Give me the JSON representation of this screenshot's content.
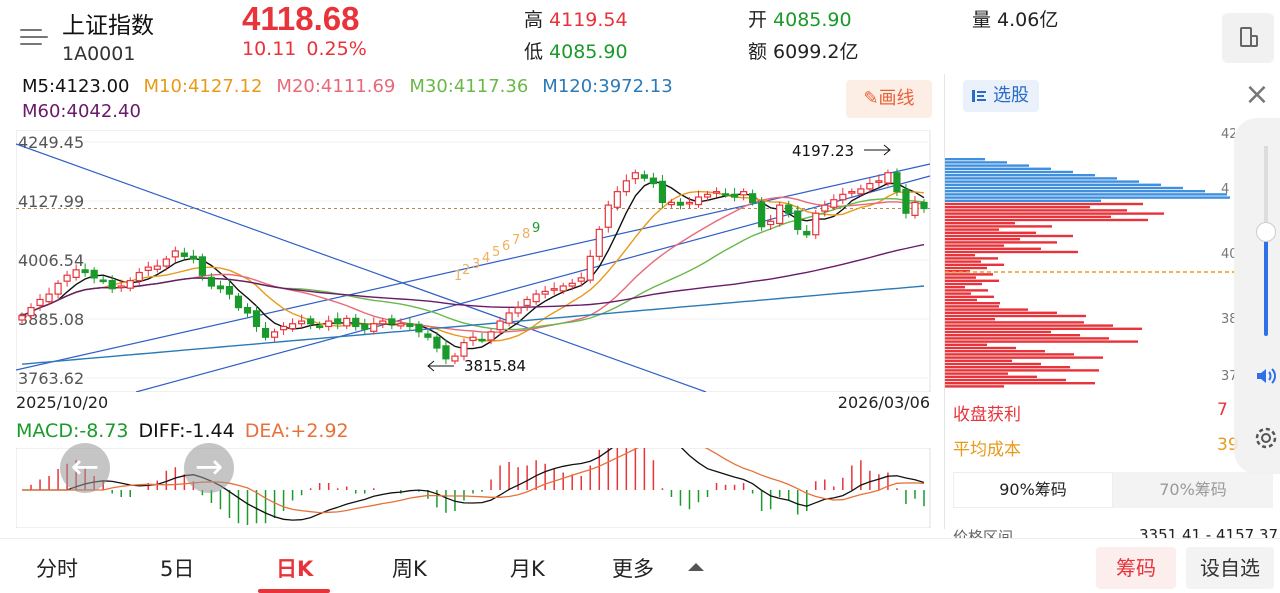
{
  "header": {
    "index_name": "上证指数",
    "index_code": "1A0001",
    "price": "4118.68",
    "change": "10.11",
    "change_pct": "0.25%",
    "high_label": "高",
    "high_value": "4119.54",
    "low_label": "低",
    "low_value": "4085.90",
    "open_label": "开",
    "open_value": "4085.90",
    "amount_label": "额",
    "amount_value": "6099.2亿",
    "volume_label": "量",
    "volume_value": "4.06亿"
  },
  "ma": {
    "m5": "M5:4123.00",
    "m10": "M10:4127.12",
    "m20": "M20:4111.69",
    "m30": "M30:4117.36",
    "m120": "M120:3972.13",
    "m60": "M60:4042.40"
  },
  "draw_button": "画线",
  "price_axis": [
    "4249.45",
    "4127.99",
    "4006.54",
    "3885.08",
    "3763.62"
  ],
  "annotations": {
    "high": "4197.23",
    "low": "3815.84"
  },
  "dates": {
    "start": "2025/10/20",
    "end": "2026/03/06"
  },
  "macd": {
    "macd": "MACD:-8.73",
    "diff": "DIFF:-1.44",
    "dea": "DEA:+2.92"
  },
  "td_sequence_labels": [
    "1",
    "2",
    "3",
    "4",
    "5",
    "6",
    "7",
    "8",
    "9"
  ],
  "colors": {
    "up": "#e8333a",
    "down": "#1a9a2a",
    "accent": "#e8333a",
    "chip_blue": "#3f8fe0"
  },
  "side": {
    "pick_label": "选股",
    "profit_label": "收盘获利",
    "profit_value": "7",
    "cost_label": "平均成本",
    "cost_value": "39",
    "tab_90": "90%筹码",
    "tab_70": "70%筹码",
    "range_label": "价格区间",
    "range_value": "3351.41 - 4157.37",
    "axis_partial": [
      "42",
      "4",
      "40",
      "38",
      "37"
    ]
  },
  "tabs": [
    "分时",
    "5日",
    "日K",
    "周K",
    "月K",
    "更多"
  ],
  "active_tab": "日K",
  "chip_button": "筹码",
  "fav_button": "设自选",
  "chart_data": {
    "type": "candlestick",
    "title": "上证指数",
    "ylim": [
      3763.62,
      4249.45
    ],
    "x_start": "2025/10/20",
    "x_end": "2026/03/06",
    "last_close": 4118.68,
    "high_marked": 4197.23,
    "low_marked": 3815.84,
    "closes": [
      3920,
      3935,
      3950,
      3960,
      3980,
      3995,
      4005,
      4000,
      3990,
      3985,
      3970,
      3975,
      3985,
      4000,
      4010,
      4012,
      4025,
      4040,
      4030,
      4025,
      3995,
      3975,
      3970,
      3960,
      3935,
      3925,
      3900,
      3880,
      3890,
      3900,
      3905,
      3910,
      3905,
      3900,
      3910,
      3905,
      3915,
      3900,
      3895,
      3905,
      3910,
      3905,
      3905,
      3900,
      3890,
      3880,
      3860,
      3840,
      3845,
      3870,
      3880,
      3875,
      3890,
      3910,
      3925,
      3935,
      3950,
      3960,
      3965,
      3970,
      3975,
      3980,
      3990,
      4030,
      4080,
      4125,
      4150,
      4170,
      4185,
      4175,
      4165,
      4130,
      4130,
      4125,
      4130,
      4140,
      4145,
      4150,
      4145,
      4140,
      4150,
      4130,
      4085,
      4095,
      4125,
      4110,
      4080,
      4070,
      4110,
      4125,
      4135,
      4145,
      4150,
      4155,
      4165,
      4170,
      4185,
      4150,
      4110,
      4130,
      4118.68
    ]
  }
}
